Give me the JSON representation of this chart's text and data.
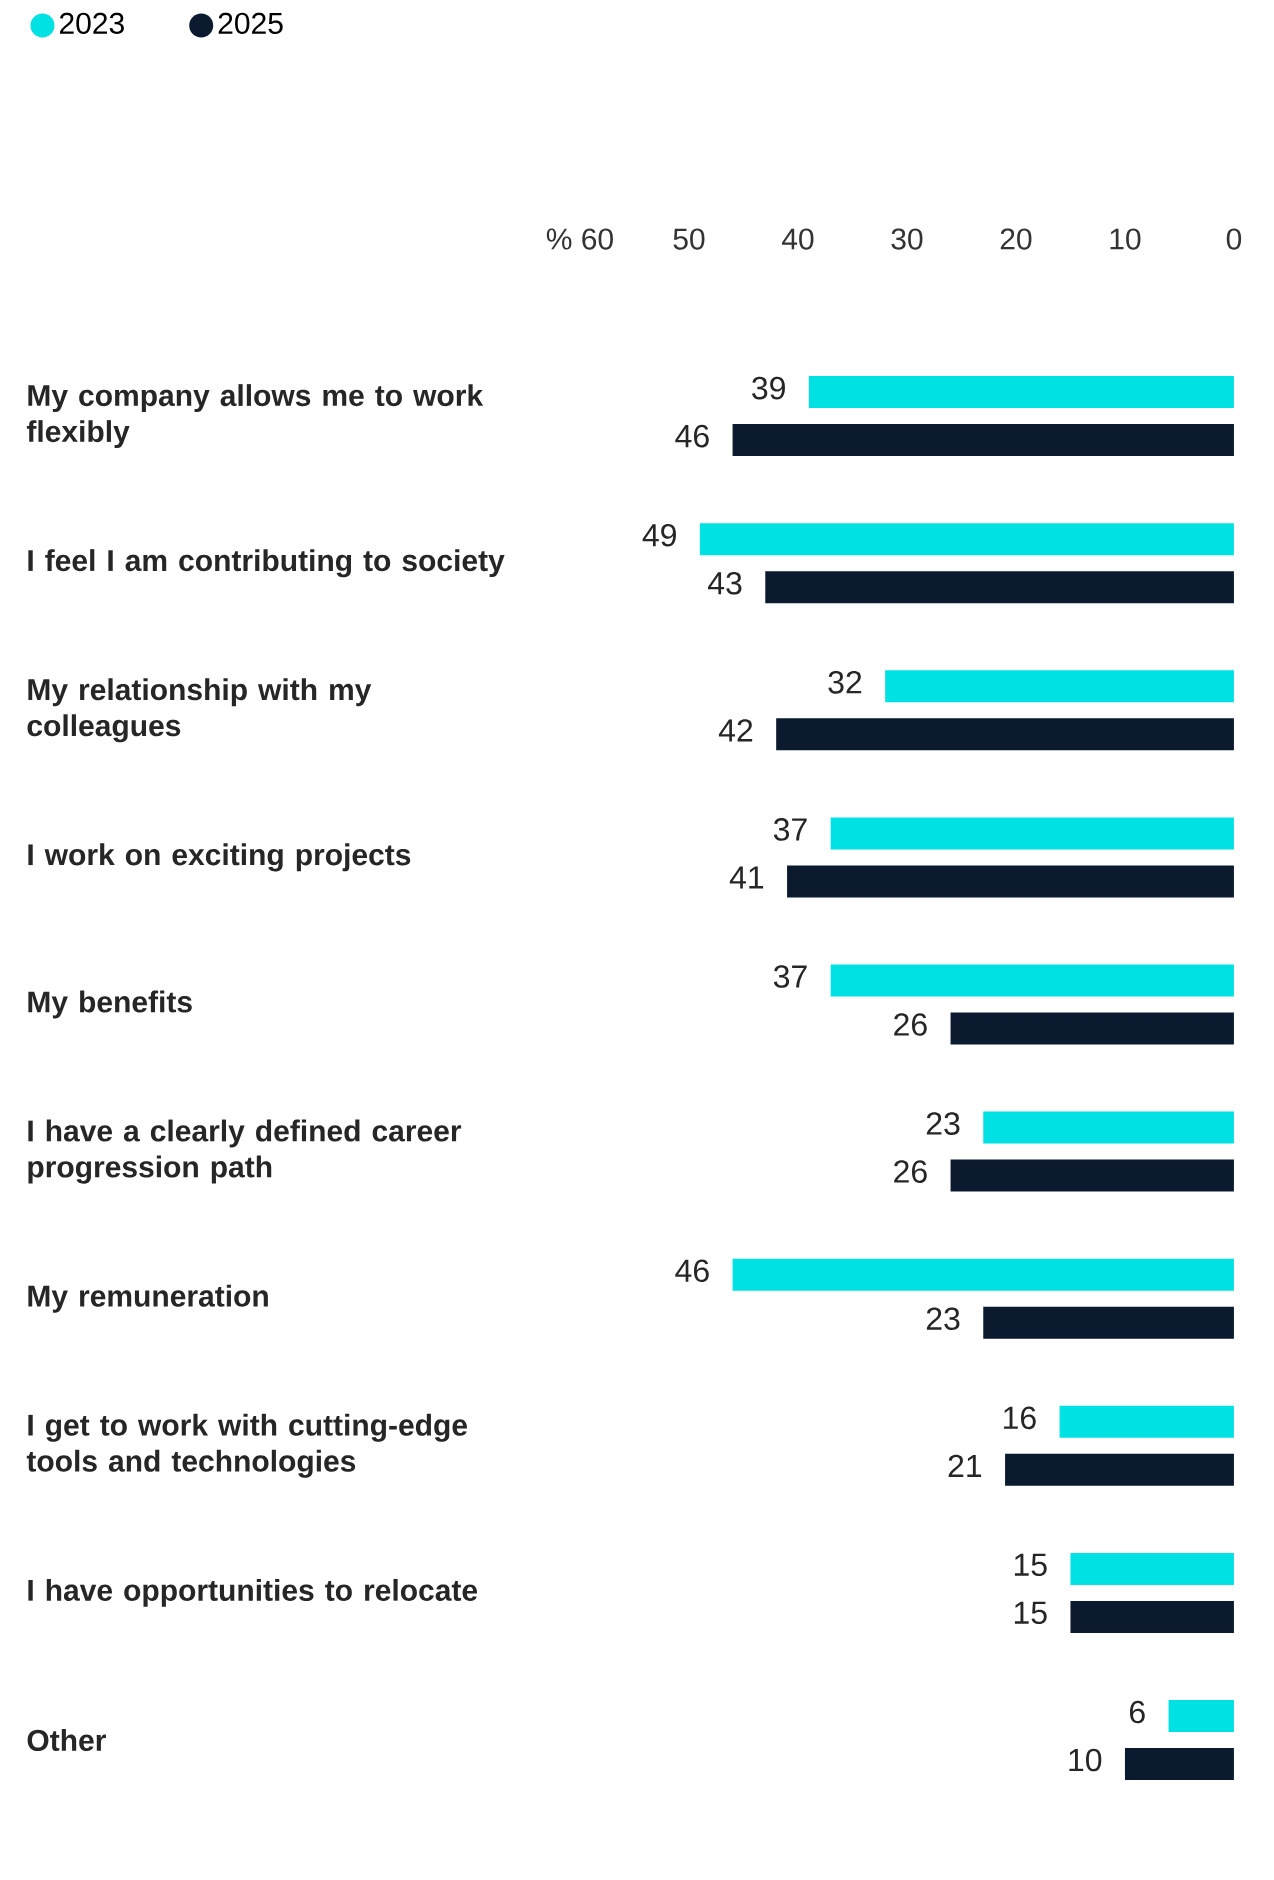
{
  "chart_data": {
    "type": "bar",
    "orientation": "horizontal",
    "categories": [
      "My company allows me to work flexibly",
      "I feel I am contributing to society",
      "My relationship with my colleagues",
      "I work on exciting projects",
      "My benefits",
      "I have a clearly defined career progression path",
      "My remuneration",
      "I get to work with cutting-edge tools and technologies",
      "I have opportunities to relocate",
      "Other"
    ],
    "series": [
      {
        "name": "2023",
        "color": "#00e1e3",
        "values": [
          39,
          49,
          32,
          37,
          37,
          23,
          46,
          16,
          15,
          6
        ]
      },
      {
        "name": "2025",
        "color": "#0b1a2e",
        "values": [
          46,
          43,
          42,
          41,
          26,
          26,
          23,
          21,
          15,
          10
        ]
      }
    ],
    "xlim": [
      60,
      0
    ],
    "xticks": [
      {
        "value": 60,
        "label": "% 60"
      },
      50,
      40,
      30,
      20,
      10,
      0
    ],
    "data_labels": true,
    "legend": "top left",
    "grid": false
  }
}
